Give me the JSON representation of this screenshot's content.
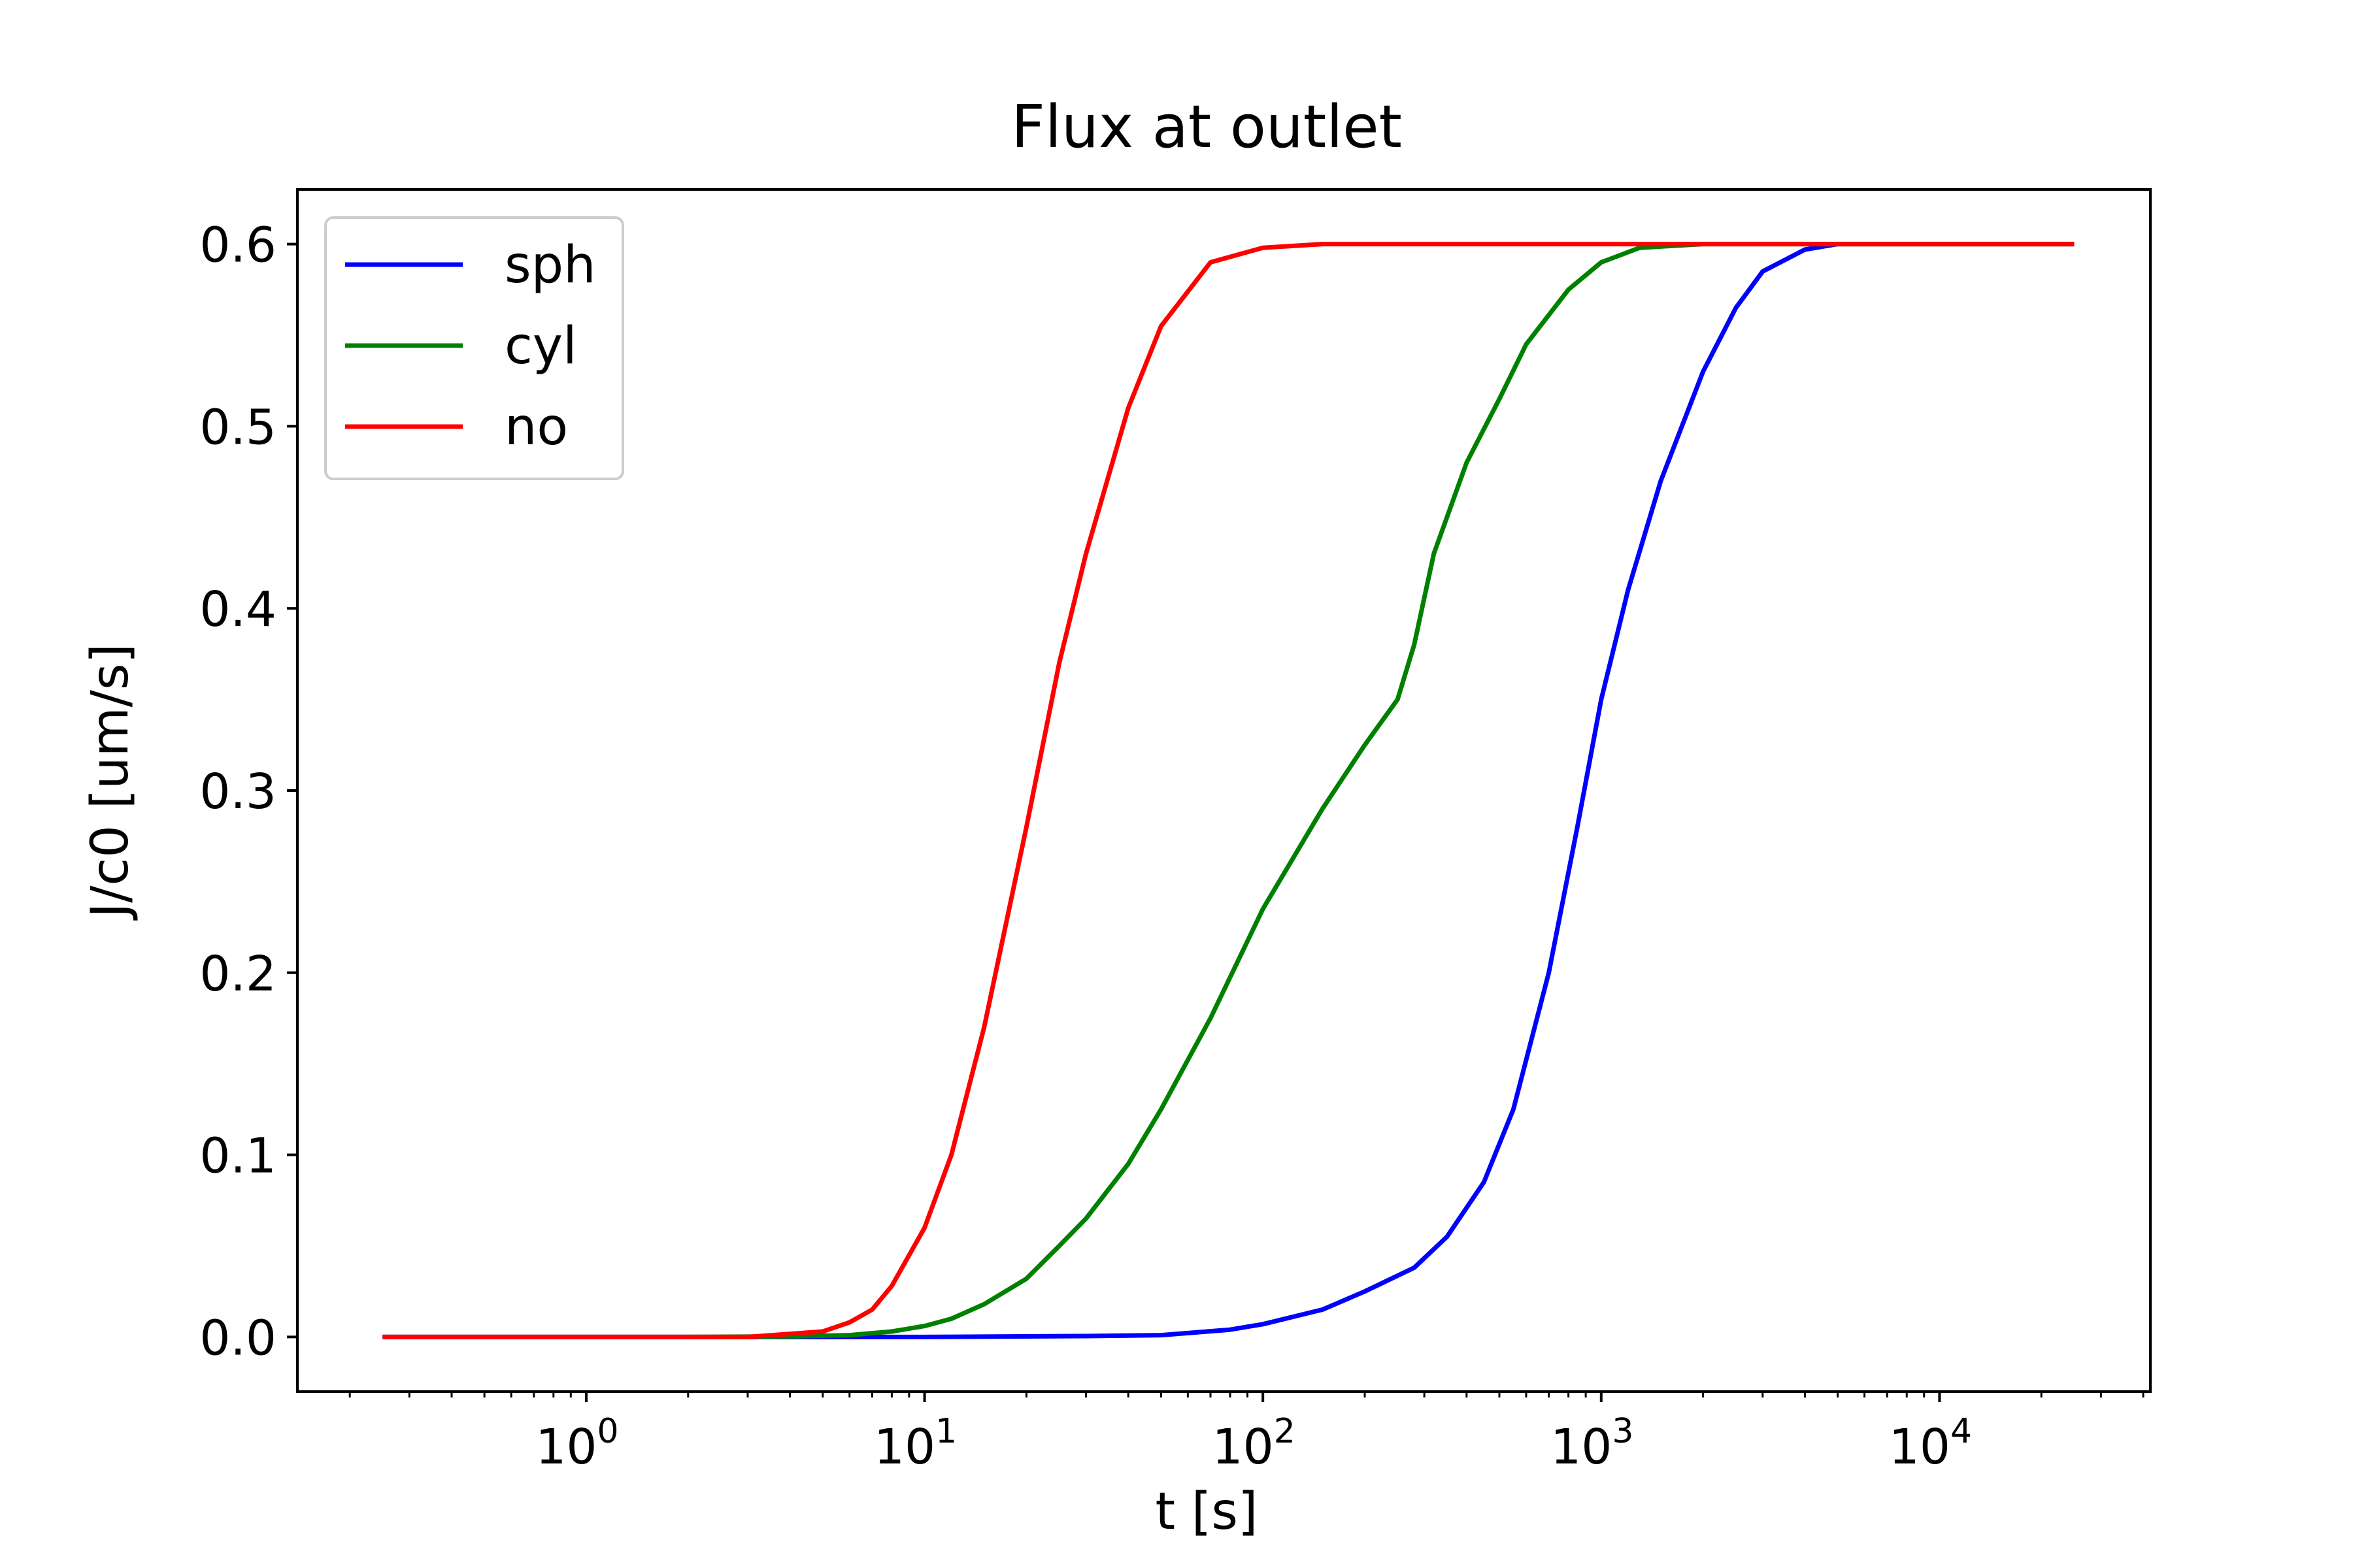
{
  "chart_data": {
    "type": "line",
    "title": "Flux at outlet",
    "xlabel": "t [s]",
    "ylabel": "J/c0 [um/s]",
    "xscale": "log",
    "xlim": [
      0.14,
      42000
    ],
    "ylim": [
      -0.03,
      0.63
    ],
    "grid": false,
    "legend": "top-left",
    "x_ticks": [
      {
        "base": "10",
        "exp": "0",
        "value": 1
      },
      {
        "base": "10",
        "exp": "1",
        "value": 10
      },
      {
        "base": "10",
        "exp": "2",
        "value": 100
      },
      {
        "base": "10",
        "exp": "3",
        "value": 1000
      },
      {
        "base": "10",
        "exp": "4",
        "value": 10000
      }
    ],
    "y_ticks": [
      {
        "label": "0.0",
        "value": 0.0
      },
      {
        "label": "0.1",
        "value": 0.1
      },
      {
        "label": "0.2",
        "value": 0.2
      },
      {
        "label": "0.3",
        "value": 0.3
      },
      {
        "label": "0.4",
        "value": 0.4
      },
      {
        "label": "0.5",
        "value": 0.5
      },
      {
        "label": "0.6",
        "value": 0.6
      }
    ],
    "series": [
      {
        "name": "sph",
        "color": "#0000ff",
        "points": [
          [
            0.25,
            0.0
          ],
          [
            1,
            0.0
          ],
          [
            10,
            0.0
          ],
          [
            30,
            0.0005
          ],
          [
            50,
            0.001
          ],
          [
            80,
            0.004
          ],
          [
            100,
            0.007
          ],
          [
            150,
            0.015
          ],
          [
            200,
            0.025
          ],
          [
            280,
            0.038
          ],
          [
            350,
            0.055
          ],
          [
            450,
            0.085
          ],
          [
            550,
            0.125
          ],
          [
            700,
            0.2
          ],
          [
            850,
            0.28
          ],
          [
            1000,
            0.35
          ],
          [
            1200,
            0.41
          ],
          [
            1500,
            0.47
          ],
          [
            2000,
            0.53
          ],
          [
            2500,
            0.565
          ],
          [
            3000,
            0.585
          ],
          [
            4000,
            0.597
          ],
          [
            5000,
            0.6
          ],
          [
            8000,
            0.6
          ],
          [
            25000,
            0.6
          ]
        ]
      },
      {
        "name": "cyl",
        "color": "#008000",
        "points": [
          [
            0.25,
            0.0
          ],
          [
            2,
            0.0
          ],
          [
            4,
            0.0003
          ],
          [
            6,
            0.001
          ],
          [
            8,
            0.003
          ],
          [
            10,
            0.006
          ],
          [
            12,
            0.01
          ],
          [
            15,
            0.018
          ],
          [
            20,
            0.032
          ],
          [
            25,
            0.05
          ],
          [
            30,
            0.065
          ],
          [
            40,
            0.095
          ],
          [
            50,
            0.125
          ],
          [
            70,
            0.175
          ],
          [
            100,
            0.235
          ],
          [
            150,
            0.29
          ],
          [
            200,
            0.325
          ],
          [
            250,
            0.35
          ],
          [
            280,
            0.38
          ],
          [
            320,
            0.43
          ],
          [
            400,
            0.48
          ],
          [
            500,
            0.515
          ],
          [
            600,
            0.545
          ],
          [
            800,
            0.575
          ],
          [
            1000,
            0.59
          ],
          [
            1300,
            0.598
          ],
          [
            2000,
            0.6
          ],
          [
            25000,
            0.6
          ]
        ]
      },
      {
        "name": "no",
        "color": "#ff0000",
        "points": [
          [
            0.25,
            0.0
          ],
          [
            3,
            0.0
          ],
          [
            5,
            0.003
          ],
          [
            6,
            0.008
          ],
          [
            7,
            0.015
          ],
          [
            8,
            0.028
          ],
          [
            10,
            0.06
          ],
          [
            12,
            0.1
          ],
          [
            15,
            0.17
          ],
          [
            20,
            0.28
          ],
          [
            25,
            0.37
          ],
          [
            30,
            0.43
          ],
          [
            40,
            0.51
          ],
          [
            50,
            0.555
          ],
          [
            70,
            0.59
          ],
          [
            100,
            0.598
          ],
          [
            150,
            0.6
          ],
          [
            25000,
            0.6
          ]
        ]
      }
    ]
  }
}
